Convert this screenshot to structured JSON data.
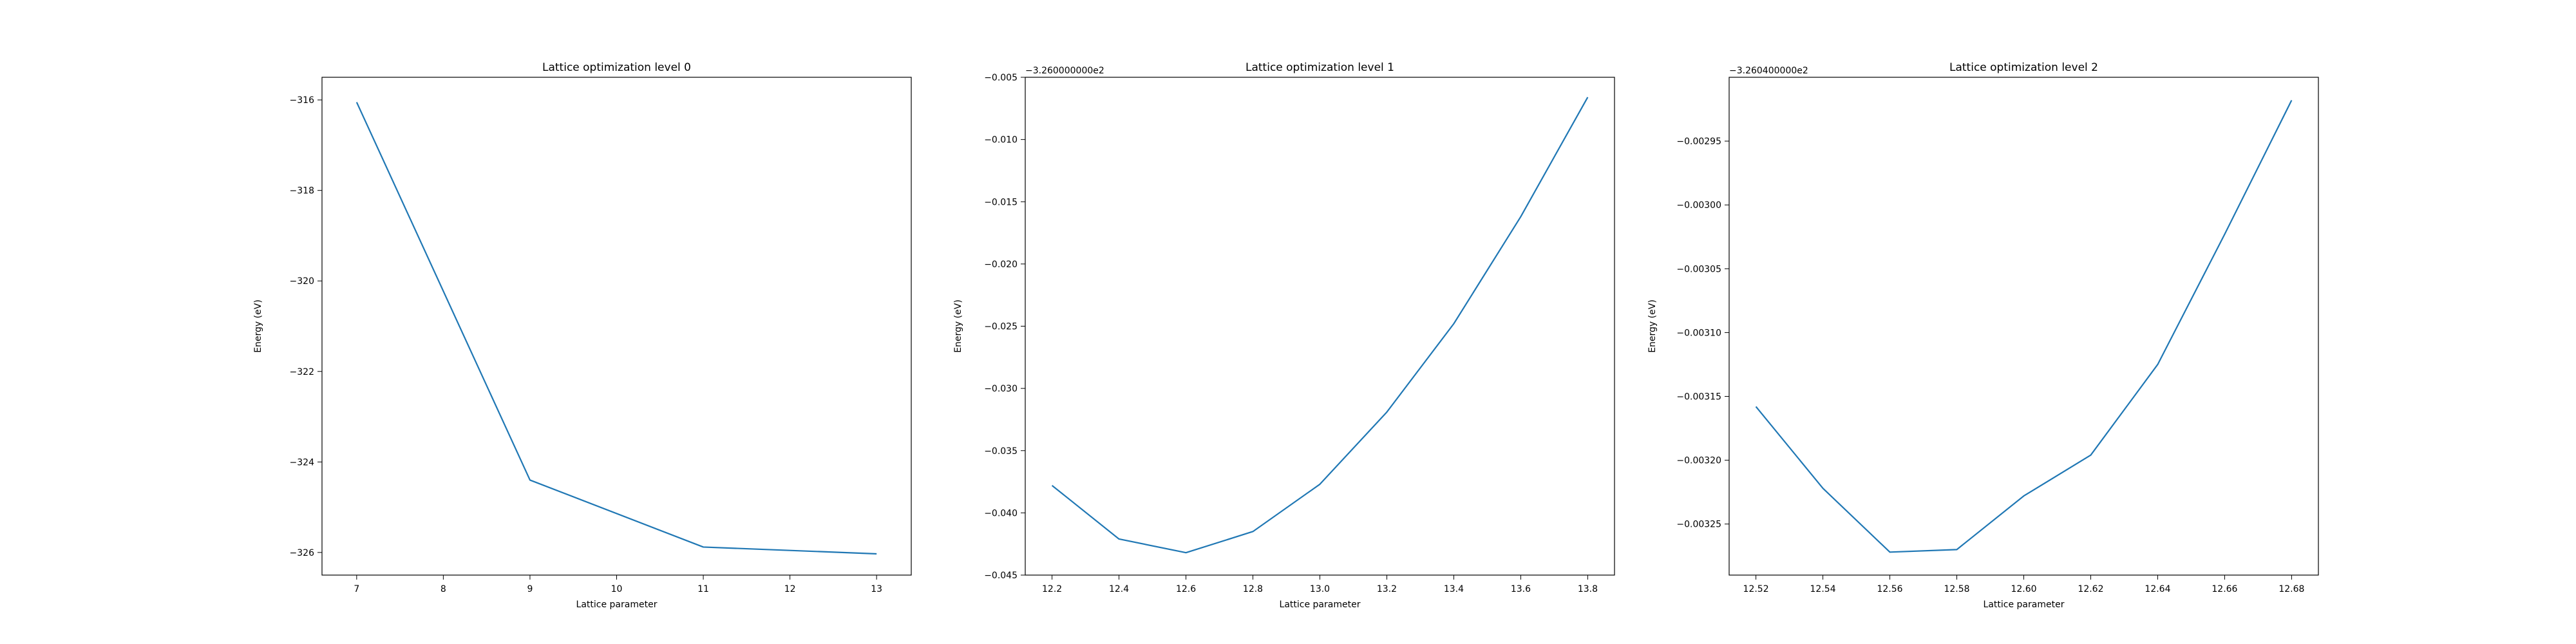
{
  "chart_data": [
    {
      "type": "line",
      "title": "Lattice optimization level 0",
      "xlabel": "Lattice parameter",
      "ylabel": "Energy (eV)",
      "offset_text": "",
      "x": [
        7,
        9,
        11,
        13
      ],
      "series": [
        {
          "values": [
            -316.05,
            -324.4,
            -325.88,
            -326.03
          ]
        }
      ],
      "xlim": [
        6.6,
        13.4
      ],
      "ylim": [
        -326.5,
        -315.5
      ],
      "x_ticks": [
        7,
        8,
        9,
        10,
        11,
        12,
        13
      ],
      "x_tick_labels": [
        "7",
        "8",
        "9",
        "10",
        "11",
        "12",
        "13"
      ],
      "y_ticks": [
        -316,
        -318,
        -320,
        -322,
        -324,
        -326
      ],
      "y_tick_labels": [
        "−316",
        "−318",
        "−320",
        "−322",
        "−324",
        "−326"
      ],
      "grid": false,
      "legend": "none"
    },
    {
      "type": "line",
      "title": "Lattice optimization level 1",
      "xlabel": "Lattice parameter",
      "ylabel": "Energy (eV)",
      "offset_text": "−3.260000000e2",
      "x": [
        12.2,
        12.4,
        12.6,
        12.8,
        13.0,
        13.2,
        13.4,
        13.6,
        13.8
      ],
      "series": [
        {
          "values": [
            -0.0378,
            -0.0421,
            -0.0432,
            -0.0415,
            -0.0377,
            -0.0319,
            -0.0248,
            -0.0162,
            -0.0066
          ]
        }
      ],
      "xlim": [
        12.12,
        13.88
      ],
      "ylim": [
        -0.045,
        -0.005
      ],
      "x_ticks": [
        12.2,
        12.4,
        12.6,
        12.8,
        13.0,
        13.2,
        13.4,
        13.6,
        13.8
      ],
      "x_tick_labels": [
        "12.2",
        "12.4",
        "12.6",
        "12.8",
        "13.0",
        "13.2",
        "13.4",
        "13.6",
        "13.8"
      ],
      "y_ticks": [
        -0.005,
        -0.01,
        -0.015,
        -0.02,
        -0.025,
        -0.03,
        -0.035,
        -0.04,
        -0.045
      ],
      "y_tick_labels": [
        "−0.005",
        "−0.010",
        "−0.015",
        "−0.020",
        "−0.025",
        "−0.030",
        "−0.035",
        "−0.040",
        "−0.045"
      ],
      "grid": false,
      "legend": "none"
    },
    {
      "type": "line",
      "title": "Lattice optimization level 2",
      "xlabel": "Lattice parameter",
      "ylabel": "Energy (eV)",
      "offset_text": "−3.260400000e2",
      "x": [
        12.52,
        12.54,
        12.56,
        12.58,
        12.6,
        12.62,
        12.64,
        12.66,
        12.68
      ],
      "series": [
        {
          "values": [
            -0.003158,
            -0.003222,
            -0.003272,
            -0.00327,
            -0.003228,
            -0.003196,
            -0.003125,
            -0.003023,
            -0.002918
          ]
        }
      ],
      "xlim": [
        12.512,
        12.688
      ],
      "ylim": [
        -0.00329,
        -0.0029
      ],
      "x_ticks": [
        12.52,
        12.54,
        12.56,
        12.58,
        12.6,
        12.62,
        12.64,
        12.66,
        12.68
      ],
      "x_tick_labels": [
        "12.52",
        "12.54",
        "12.56",
        "12.58",
        "12.60",
        "12.62",
        "12.64",
        "12.66",
        "12.68"
      ],
      "y_ticks": [
        -0.00295,
        -0.003,
        -0.00305,
        -0.0031,
        -0.00315,
        -0.0032,
        -0.00325
      ],
      "y_tick_labels": [
        "−0.00295",
        "−0.00300",
        "−0.00305",
        "−0.00310",
        "−0.00315",
        "−0.00320",
        "−0.00325"
      ],
      "grid": false,
      "legend": "none"
    }
  ],
  "colors": {
    "line": "#1f77b4",
    "axes": "#000000",
    "background": "#ffffff"
  }
}
